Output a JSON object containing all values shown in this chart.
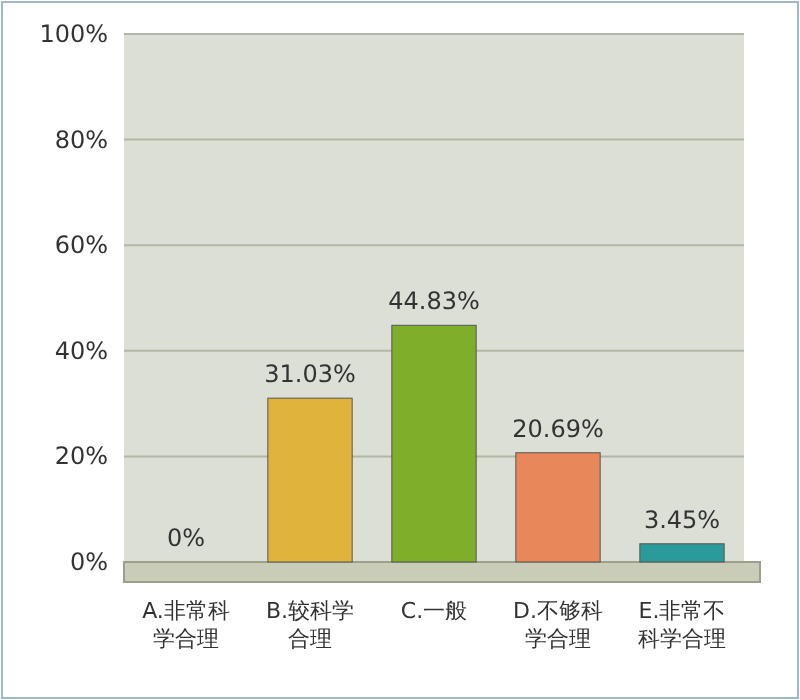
{
  "chart_data": {
    "type": "bar",
    "categories": [
      "A.非常科学合理",
      "B.较科学合理",
      "C.一般",
      "D.不够科学合理",
      "E.非常不科学合理"
    ],
    "values": [
      0,
      31.03,
      44.83,
      20.69,
      3.45
    ],
    "colors": [
      "#a9c4e8",
      "#e0b43a",
      "#7fae2a",
      "#e8875a",
      "#2a9a9a"
    ],
    "value_labels": [
      "0%",
      "31.03%",
      "44.83%",
      "20.69%",
      "3.45%"
    ],
    "ylim": [
      0,
      100
    ],
    "yticks": [
      {
        "value": 0,
        "label": "0%"
      },
      {
        "value": 20,
        "label": "20%"
      },
      {
        "value": 40,
        "label": "40%"
      },
      {
        "value": 60,
        "label": "60%"
      },
      {
        "value": 80,
        "label": "80%"
      },
      {
        "value": 100,
        "label": "100%"
      }
    ],
    "grid": "y"
  }
}
